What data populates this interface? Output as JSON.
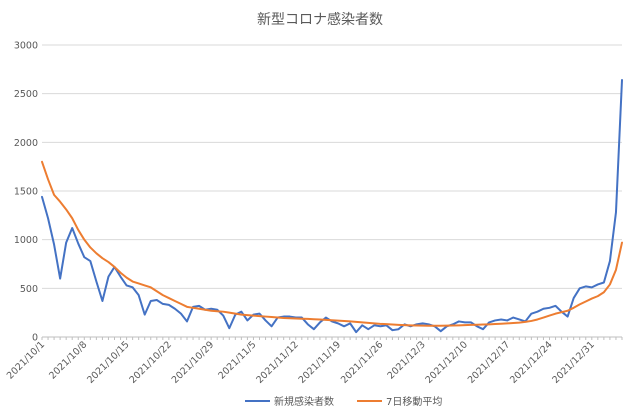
{
  "chart_data": {
    "type": "line",
    "title": "新型コロナ感染者数",
    "xlabel": "",
    "ylabel": "",
    "ylim": [
      0,
      3000
    ],
    "yticks": [
      0,
      500,
      1000,
      1500,
      2000,
      2500,
      3000
    ],
    "grid": true,
    "legend_position": "bottom",
    "x_tick_labels": [
      "2021/10/1",
      "2021/10/8",
      "2021/10/15",
      "2021/10/22",
      "2021/10/29",
      "2021/11/5",
      "2021/11/12",
      "2021/11/19",
      "2021/11/26",
      "2021/12/3",
      "2021/12/10",
      "2021/12/17",
      "2021/12/24",
      "2021/12/31"
    ],
    "x_start": "2021/10/1",
    "x_end": "2022/1/4",
    "series": [
      {
        "name": "新規感染者数",
        "color": "#4472c4",
        "values": [
          1440,
          1220,
          950,
          600,
          970,
          1120,
          960,
          820,
          780,
          570,
          370,
          620,
          720,
          620,
          530,
          510,
          430,
          230,
          370,
          380,
          340,
          330,
          290,
          240,
          160,
          310,
          320,
          280,
          290,
          280,
          220,
          90,
          230,
          260,
          170,
          230,
          240,
          170,
          110,
          200,
          210,
          210,
          200,
          200,
          130,
          80,
          150,
          200,
          160,
          140,
          110,
          140,
          50,
          120,
          80,
          120,
          110,
          120,
          70,
          80,
          130,
          110,
          130,
          140,
          130,
          110,
          60,
          110,
          130,
          160,
          150,
          150,
          110,
          80,
          150,
          170,
          180,
          170,
          200,
          180,
          160,
          240,
          260,
          290,
          300,
          320,
          260,
          210,
          400,
          500,
          520,
          510,
          540,
          560,
          780,
          1280,
          2640
        ]
      },
      {
        "name": "7日移動平均",
        "color": "#ed7d31",
        "values": [
          1800,
          1620,
          1460,
          1390,
          1310,
          1220,
          1100,
          1000,
          920,
          860,
          810,
          770,
          720,
          660,
          610,
          570,
          550,
          530,
          510,
          470,
          430,
          400,
          370,
          340,
          310,
          300,
          290,
          280,
          270,
          265,
          260,
          250,
          240,
          230,
          225,
          220,
          215,
          210,
          205,
          200,
          195,
          192,
          190,
          188,
          186,
          183,
          180,
          176,
          172,
          168,
          164,
          160,
          155,
          150,
          145,
          140,
          135,
          132,
          128,
          125,
          122,
          120,
          118,
          117,
          116,
          116,
          116,
          117,
          118,
          120,
          122,
          124,
          126,
          128,
          130,
          133,
          136,
          140,
          144,
          148,
          155,
          165,
          180,
          200,
          220,
          240,
          255,
          270,
          300,
          335,
          365,
          395,
          420,
          460,
          540,
          690,
          970
        ]
      }
    ]
  }
}
